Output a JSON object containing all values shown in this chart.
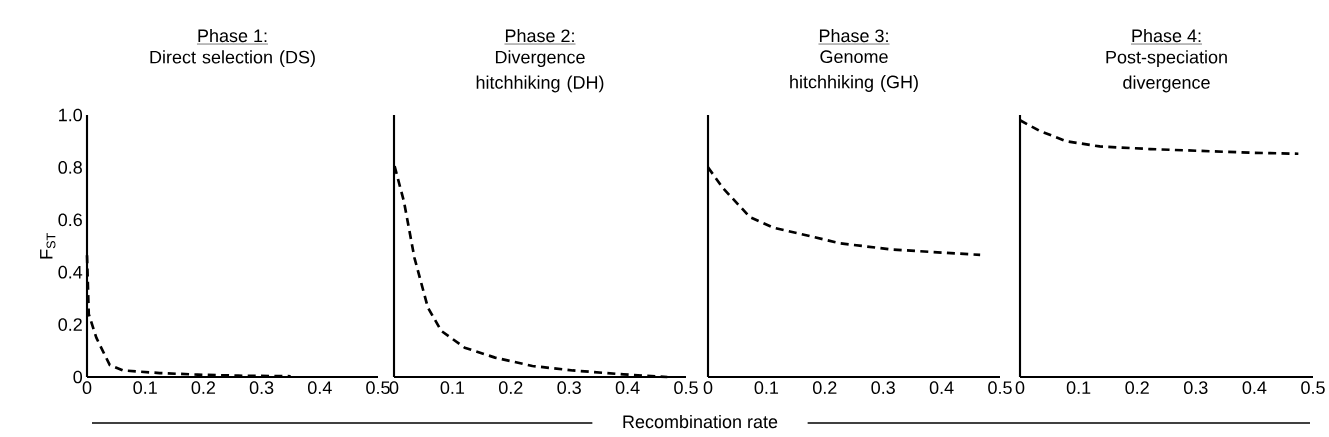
{
  "chart_data": [
    {
      "type": "line",
      "title": "Phase 1:",
      "subtitle": "Direct selection (DS)",
      "ylabel": "F$_{ST}$",
      "line_style": "dashed",
      "marker": "none",
      "xlim": [
        0,
        0.5
      ],
      "ylim": [
        0,
        1.0
      ],
      "xticks": [
        0,
        0.1,
        0.2,
        0.3,
        0.4,
        0.5
      ],
      "yticks": [
        0,
        0.2,
        0.4,
        0.6,
        0.8,
        {
          "value": 1.0,
          "label": "1.0"
        }
      ],
      "x": [
        0,
        0.003,
        0.016,
        0.039,
        0.062,
        0.125,
        0.19,
        0.26,
        0.35
      ],
      "series": [
        {
          "color": "#000000",
          "values": [
            0.465,
            0.24,
            0.15,
            0.046,
            0.025,
            0.015,
            0.009,
            0.005,
            0.003
          ]
        }
      ]
    },
    {
      "type": "line",
      "title": "Phase 2:",
      "subtitle": "Divergence hitchhiking (DH)",
      "xlabel": "Recombination rate",
      "line_style": "dashed",
      "marker": "none",
      "tick_labels": "x",
      "xlim": [
        0,
        0.5
      ],
      "ylim": [
        0,
        1.0
      ],
      "xticks": [
        0,
        0.1,
        0.2,
        0.3,
        0.4,
        0.5
      ],
      "x": [
        0.001,
        0.017,
        0.035,
        0.058,
        0.081,
        0.121,
        0.173,
        0.237,
        0.306,
        0.393,
        0.468
      ],
      "series": [
        {
          "color": "#000000",
          "values": [
            0.805,
            0.67,
            0.455,
            0.265,
            0.176,
            0.112,
            0.074,
            0.042,
            0.025,
            0.01,
            0.0
          ]
        }
      ]
    },
    {
      "type": "line",
      "title": "Phase 3:",
      "subtitle": "Genome hitchhiking (GH)",
      "line_style": "dashed",
      "marker": "none",
      "tick_labels": "x",
      "xlim": [
        0,
        0.5
      ],
      "ylim": [
        0,
        1.0
      ],
      "xticks": [
        0,
        0.1,
        0.2,
        0.3,
        0.4,
        0.5
      ],
      "x": [
        0,
        0.026,
        0.072,
        0.112,
        0.17,
        0.227,
        0.313,
        0.4,
        0.466
      ],
      "series": [
        {
          "color": "#000000",
          "values": [
            0.8,
            0.72,
            0.61,
            0.57,
            0.54,
            0.51,
            0.487,
            0.475,
            0.466
          ]
        }
      ]
    },
    {
      "type": "line",
      "title": "Phase 4:",
      "subtitle": "Post-speciation divergence",
      "line_style": "dashed",
      "marker": "none",
      "tick_labels": "x",
      "xlim": [
        0,
        0.5
      ],
      "ylim": [
        0,
        1.0
      ],
      "xticks": [
        0,
        0.1,
        0.2,
        0.3,
        0.4,
        0.5
      ],
      "x": [
        0,
        0.033,
        0.079,
        0.136,
        0.222,
        0.308,
        0.394,
        0.475
      ],
      "series": [
        {
          "color": "#000000",
          "values": [
            0.98,
            0.94,
            0.9,
            0.88,
            0.87,
            0.863,
            0.856,
            0.852
          ]
        }
      ]
    }
  ]
}
